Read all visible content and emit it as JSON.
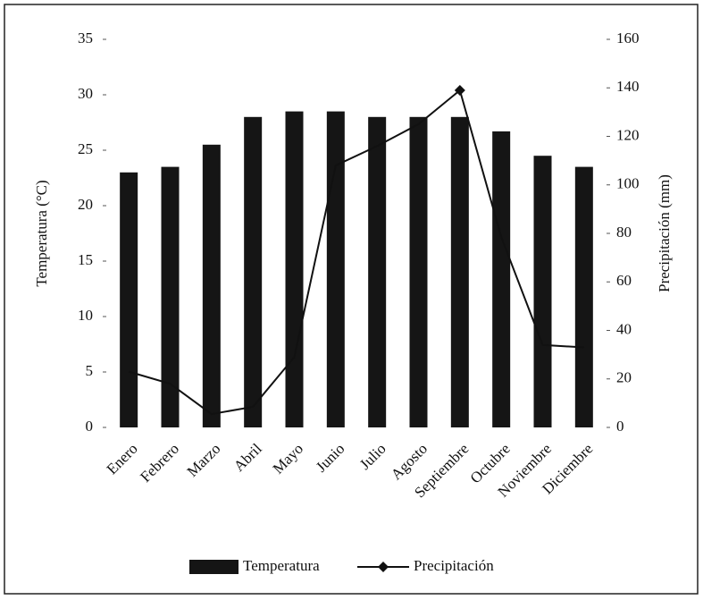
{
  "chart_data": {
    "type": "bar",
    "categories": [
      "Enero",
      "Febrero",
      "Marzo",
      "Abril",
      "Mayo",
      "Junio",
      "Julio",
      "Agosto",
      "Septiembre",
      "Octubre",
      "Noviembre",
      "Diciembre"
    ],
    "series": [
      {
        "name": "Temperatura",
        "type": "bar",
        "color": "#151515",
        "values": [
          23,
          23.5,
          25.5,
          28,
          28.5,
          28.5,
          28,
          28,
          28,
          26.7,
          24.5,
          23.5
        ]
      },
      {
        "name": "Precipitación",
        "type": "line",
        "axis": "y2",
        "color": "#111111",
        "values": [
          23,
          18,
          5.5,
          8.5,
          29,
          108,
          116,
          125,
          139,
          78.5,
          34,
          33
        ]
      }
    ],
    "y_label": "Temperatura (°C)",
    "y2_label": "Precipitación (mm)",
    "ylim": [
      0,
      35
    ],
    "yticks": [
      0,
      5,
      10,
      15,
      20,
      25,
      30,
      35
    ],
    "y2lim": [
      0,
      160
    ],
    "y2ticks": [
      0,
      20,
      40,
      60,
      80,
      100,
      120,
      140,
      160
    ],
    "legend": "bottom",
    "grid": false
  }
}
